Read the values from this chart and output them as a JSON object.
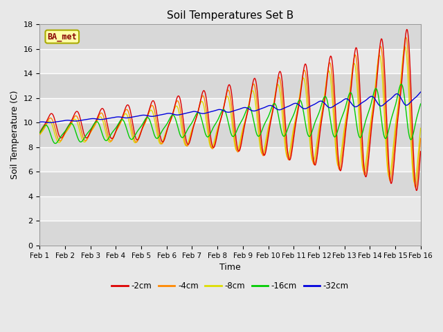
{
  "title": "Soil Temperatures Set B",
  "xlabel": "Time",
  "ylabel": "Soil Temperature (C)",
  "ylim": [
    0,
    18
  ],
  "yticks": [
    0,
    2,
    4,
    6,
    8,
    10,
    12,
    14,
    16,
    18
  ],
  "label_box": "BA_met",
  "colors": {
    "-2cm": "#dd0000",
    "-4cm": "#ff8800",
    "-8cm": "#dddd00",
    "-16cm": "#00cc00",
    "-32cm": "#0000dd"
  },
  "x_tick_labels": [
    "Feb 1",
    "Feb 2",
    "Feb 3",
    "Feb 4",
    "Feb 5",
    "Feb 6",
    "Feb 7",
    "Feb 8",
    "Feb 9",
    "Feb 10",
    "Feb 11",
    "Feb 12",
    "Feb 13",
    "Feb 14",
    "Feb 15",
    "Feb 16"
  ],
  "bg_color": "#e8e8e8",
  "fig_bg": "#e8e8e8"
}
